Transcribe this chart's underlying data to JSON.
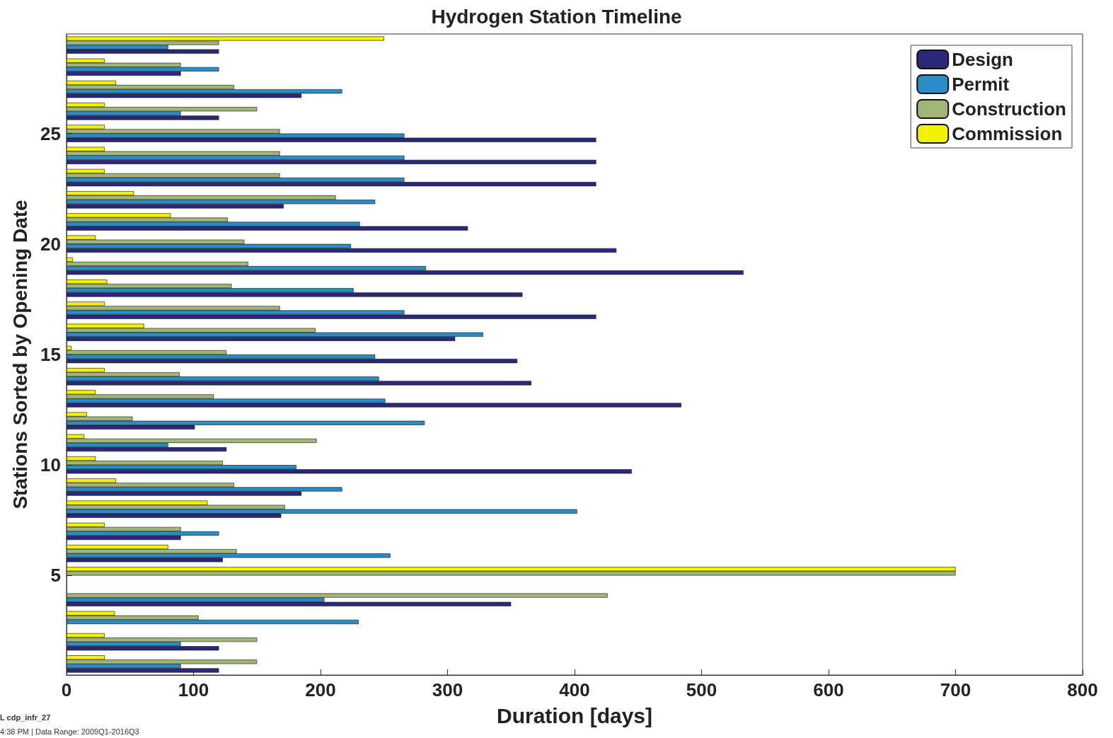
{
  "chart_data": {
    "type": "bar",
    "orientation": "horizontal",
    "title": "Hydrogen Station Timeline",
    "xlabel": "Duration [days]",
    "ylabel": "Stations Sorted by Opening Date",
    "categories": [
      null,
      null,
      null,
      null,
      "25",
      null,
      null,
      null,
      null,
      "20",
      null,
      null,
      null,
      null,
      "15",
      null,
      null,
      null,
      null,
      "10",
      null,
      null,
      null,
      null,
      "5",
      null,
      null,
      null,
      null
    ],
    "series": [
      {
        "name": "Design",
        "color": "#2b2878",
        "values": [
          120,
          90,
          185,
          120,
          417,
          417,
          417,
          171,
          316,
          433,
          533,
          359,
          417,
          306,
          355,
          366,
          484,
          101,
          126,
          445,
          185,
          169,
          90,
          123,
          null,
          350,
          null,
          120,
          120
        ]
      },
      {
        "name": "Permit",
        "color": "#2a8cc4",
        "values": [
          80,
          120,
          217,
          90,
          266,
          266,
          266,
          243,
          231,
          224,
          283,
          226,
          266,
          328,
          243,
          246,
          251,
          282,
          80,
          181,
          217,
          402,
          120,
          255,
          null,
          203,
          230,
          90,
          90
        ]
      },
      {
        "name": "Construction",
        "color": "#a2b578",
        "values": [
          120,
          90,
          132,
          150,
          168,
          168,
          168,
          212,
          127,
          140,
          143,
          130,
          168,
          196,
          126,
          89,
          116,
          52,
          197,
          123,
          132,
          172,
          90,
          134,
          700,
          426,
          104,
          150,
          150
        ]
      },
      {
        "name": "Commission",
        "color": "#f2f200",
        "values": [
          250,
          30,
          39,
          30,
          30,
          30,
          30,
          53,
          82,
          23,
          5,
          32,
          30,
          61,
          4,
          30,
          23,
          16,
          14,
          23,
          39,
          111,
          30,
          80,
          700,
          null,
          38,
          30,
          30
        ]
      }
    ],
    "xlim": [
      0,
      800
    ],
    "xticks": [
      0,
      100,
      200,
      300,
      400,
      500,
      600,
      700,
      800
    ],
    "legend": "top right",
    "annotations": [
      "L cdp_infr_27",
      "4:38 PM | Data Range: 2009Q1-2016Q3"
    ]
  }
}
